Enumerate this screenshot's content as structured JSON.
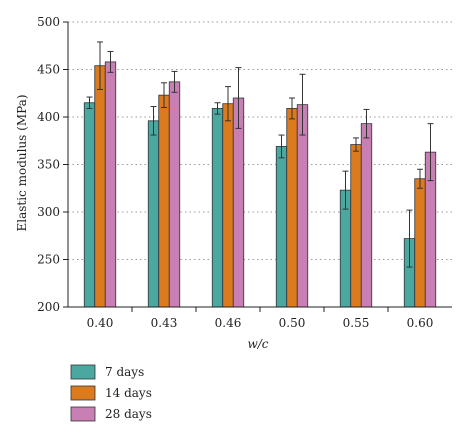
{
  "chart_data": {
    "type": "bar",
    "title": "",
    "xlabel": "w/c",
    "ylabel": "Elastic modulus (MPa)",
    "categories": [
      "0.40",
      "0.43",
      "0.46",
      "0.50",
      "0.55",
      "0.60"
    ],
    "ylim": [
      200,
      500
    ],
    "yticks": [
      200,
      250,
      300,
      350,
      400,
      450,
      500
    ],
    "grid": "horizontal dotted",
    "legend_position": "bottom-left",
    "series": [
      {
        "name": "7 days",
        "color": "#4aa8a0",
        "values": [
          415,
          396,
          409,
          369,
          323,
          272
        ],
        "errors": [
          6,
          15,
          6,
          12,
          20,
          30
        ]
      },
      {
        "name": "14 days",
        "color": "#dc7a1e",
        "values": [
          454,
          423,
          414,
          409,
          371,
          335
        ],
        "errors": [
          25,
          13,
          18,
          11,
          7,
          10
        ]
      },
      {
        "name": "28 days",
        "color": "#c77fb4",
        "values": [
          458,
          437,
          420,
          413,
          393,
          363
        ],
        "errors": [
          11,
          11,
          32,
          32,
          15,
          30
        ]
      }
    ]
  }
}
